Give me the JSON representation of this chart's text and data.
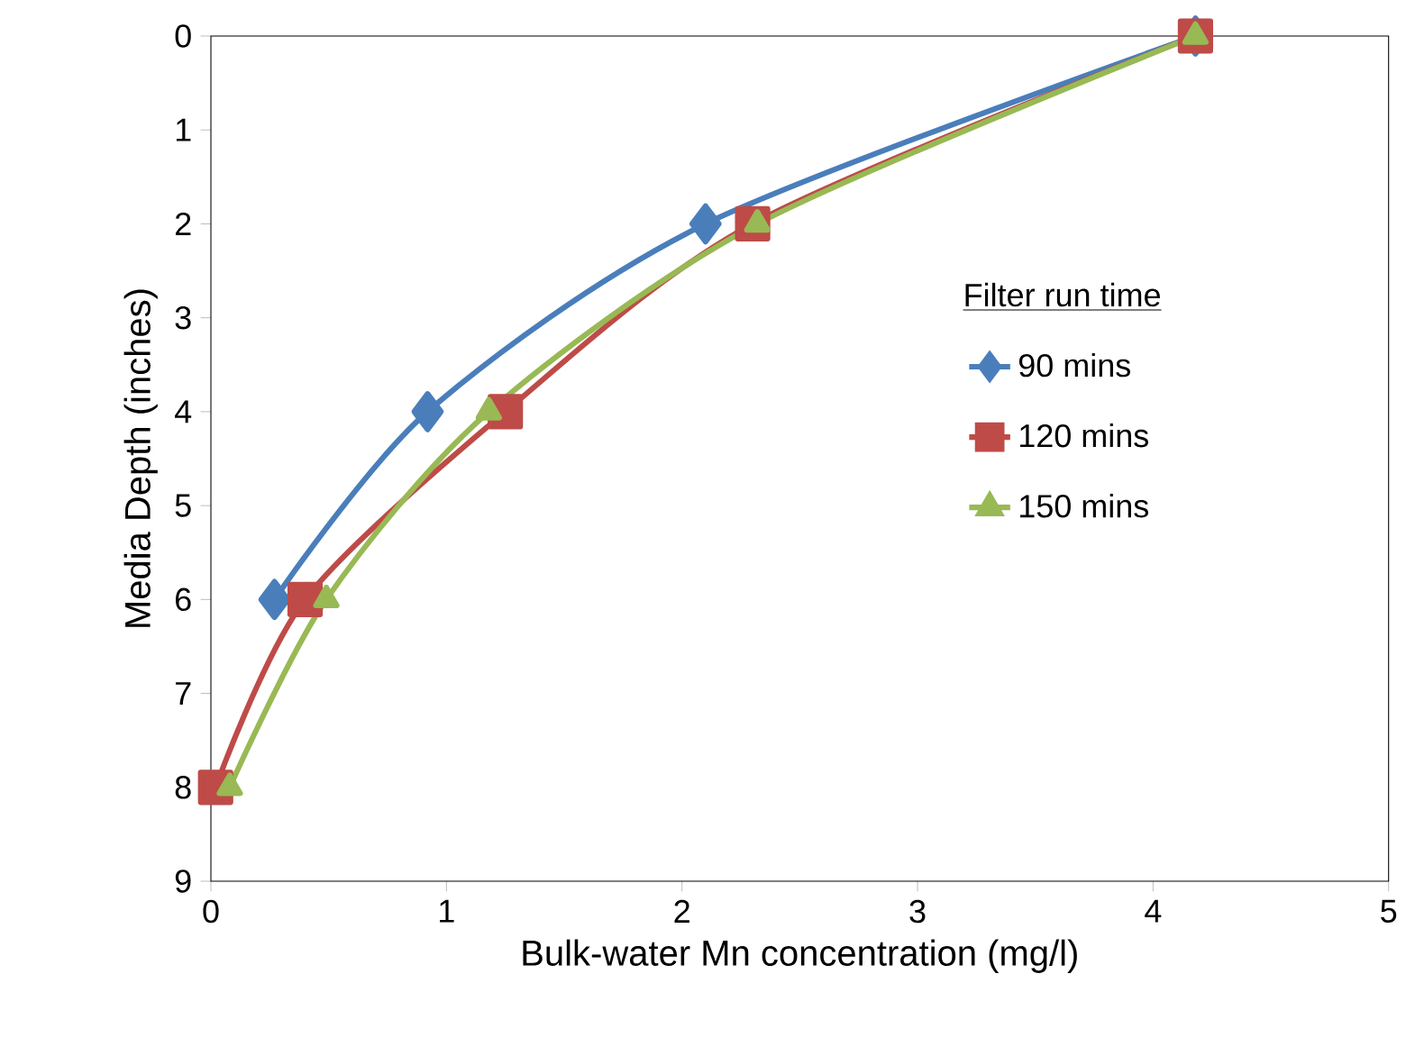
{
  "chart_data": {
    "type": "line",
    "xlabel": "Bulk-water Mn concentration (mg/l)",
    "ylabel": "Media Depth (inches)",
    "legend_title": "Filter  run time",
    "xlim": [
      0,
      5
    ],
    "xticks": [
      0,
      1,
      2,
      3,
      4,
      5
    ],
    "ylim": [
      9,
      0
    ],
    "yticks": [
      0,
      1,
      2,
      3,
      4,
      5,
      6,
      7,
      8,
      9
    ],
    "grid": false,
    "legend": "right",
    "series": [
      {
        "name": "90 mins",
        "color": "#4a7ebb",
        "marker": "diamond",
        "x": [
          4.18,
          2.1,
          0.92,
          0.27,
          null
        ],
        "values": [
          0,
          2,
          4,
          6,
          null
        ]
      },
      {
        "name": "120 mins",
        "color": "#be4b48",
        "marker": "square",
        "x": [
          4.18,
          2.3,
          1.25,
          0.4,
          0.02
        ],
        "values": [
          0,
          2,
          4,
          6,
          8
        ]
      },
      {
        "name": "150 mins",
        "color": "#98b954",
        "marker": "triangle",
        "x": [
          4.18,
          2.32,
          1.18,
          0.49,
          0.08
        ],
        "values": [
          0,
          2,
          4,
          6,
          8
        ]
      }
    ]
  }
}
